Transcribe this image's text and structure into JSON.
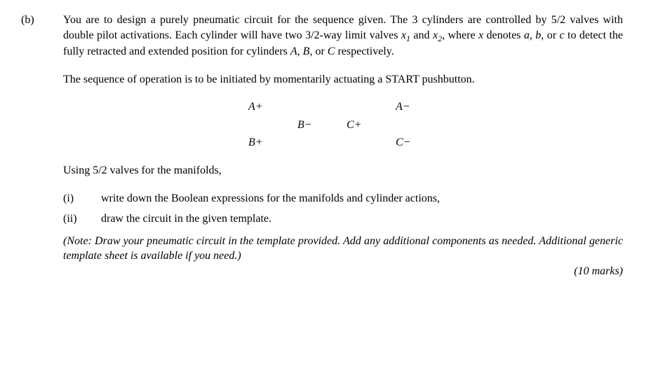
{
  "question": {
    "label": "(b)",
    "para1_pre": "You are to design a purely pneumatic circuit for the sequence given.  The 3 cylinders are controlled by 5/2 valves with double pilot activations.  Each cylinder will have two 3/2-way limit valves ",
    "para1_x1_x": "x",
    "para1_x1_sub": "1",
    "para1_mid1": " and ",
    "para1_x2_x": "x",
    "para1_x2_sub": "2",
    "para1_mid2": ", where ",
    "para1_x": "x",
    "para1_mid3": " denotes ",
    "para1_a": "a, b,",
    "para1_mid4": " or ",
    "para1_c": "c",
    "para1_mid5": " to detect the fully retracted and extended position for cylinders ",
    "para1_ABC": "A, B,",
    "para1_mid6": " or ",
    "para1_C": "C",
    "para1_post": " respectively.",
    "para2": "The sequence of operation is to be initiated by momentarily actuating a START pushbutton.",
    "sequence": {
      "r1c1": "A+",
      "r1c2": "",
      "r1c3": "",
      "r1c4": "A−",
      "r2c1": "",
      "r2c2": "B−",
      "r2c3": "C+",
      "r2c4": "",
      "r3c1": "B+",
      "r3c2": "",
      "r3c3": "",
      "r3c4": "C−"
    },
    "para3": "Using 5/2 valves for the manifolds,",
    "sub_i_label": "(i)",
    "sub_i_text": "write down the Boolean expressions for the manifolds and cylinder actions,",
    "sub_ii_label": "(ii)",
    "sub_ii_text": "draw the circuit in the given template.",
    "note": "(Note: Draw your pneumatic circuit in the template provided.  Add any additional components as needed. Additional generic template sheet is available if you need.)",
    "marks": "(10 marks)"
  }
}
